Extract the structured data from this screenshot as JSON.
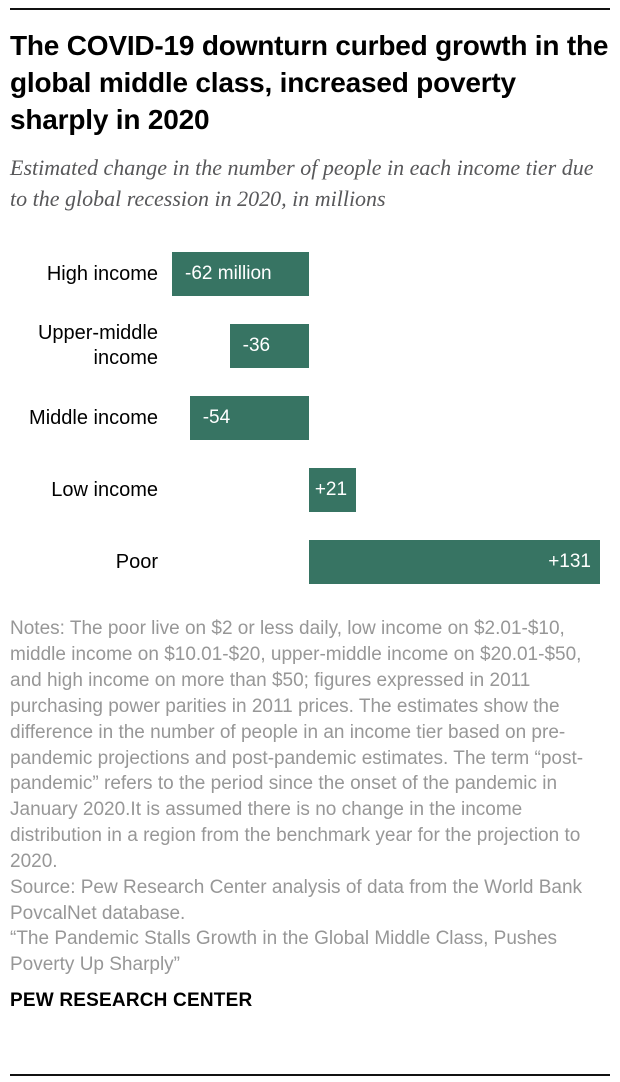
{
  "header": {
    "title": "The COVID-19 downturn curbed growth in the global middle class, increased poverty sharply in 2020",
    "subtitle": "Estimated change in the number of people in each income tier due to the global recession in 2020, in millions"
  },
  "chart_data": {
    "type": "bar",
    "orientation": "horizontal",
    "title": "Estimated change in the number of people in each income tier due to the global recession in 2020, in millions",
    "categories": [
      "High income",
      "Upper-middle income",
      "Middle income",
      "Low income",
      "Poor"
    ],
    "values": [
      -62,
      -36,
      -54,
      21,
      131
    ],
    "value_labels": [
      "-62 million",
      "-36",
      "-54",
      "+21",
      "+131"
    ],
    "xlim": [
      -62,
      131
    ],
    "bar_color": "#377463",
    "grid": false,
    "legend": false
  },
  "footer": {
    "notes_text": "Notes: The poor live on $2 or less daily, low income on $2.01-$10, middle income on $10.01-$20, upper-middle income on $20.01-$50, and high income on more than $50; figures expressed in 2011 purchasing power parities in 2011 prices. The estimates show the difference in the number of people in an income tier based on pre-pandemic projections and post-pandemic estimates. The term “post-pandemic” refers to the period since the onset of the pandemic in January 2020.It is assumed there is no change in the income distribution in a region from the benchmark year for the projection to 2020.",
    "source_text": "Source: Pew Research Center analysis of data from the World Bank PovcalNet database.",
    "report_title": "“The Pandemic Stalls Growth in the Global Middle Class, Pushes Poverty Up Sharply”",
    "brand": "PEW RESEARCH CENTER"
  }
}
